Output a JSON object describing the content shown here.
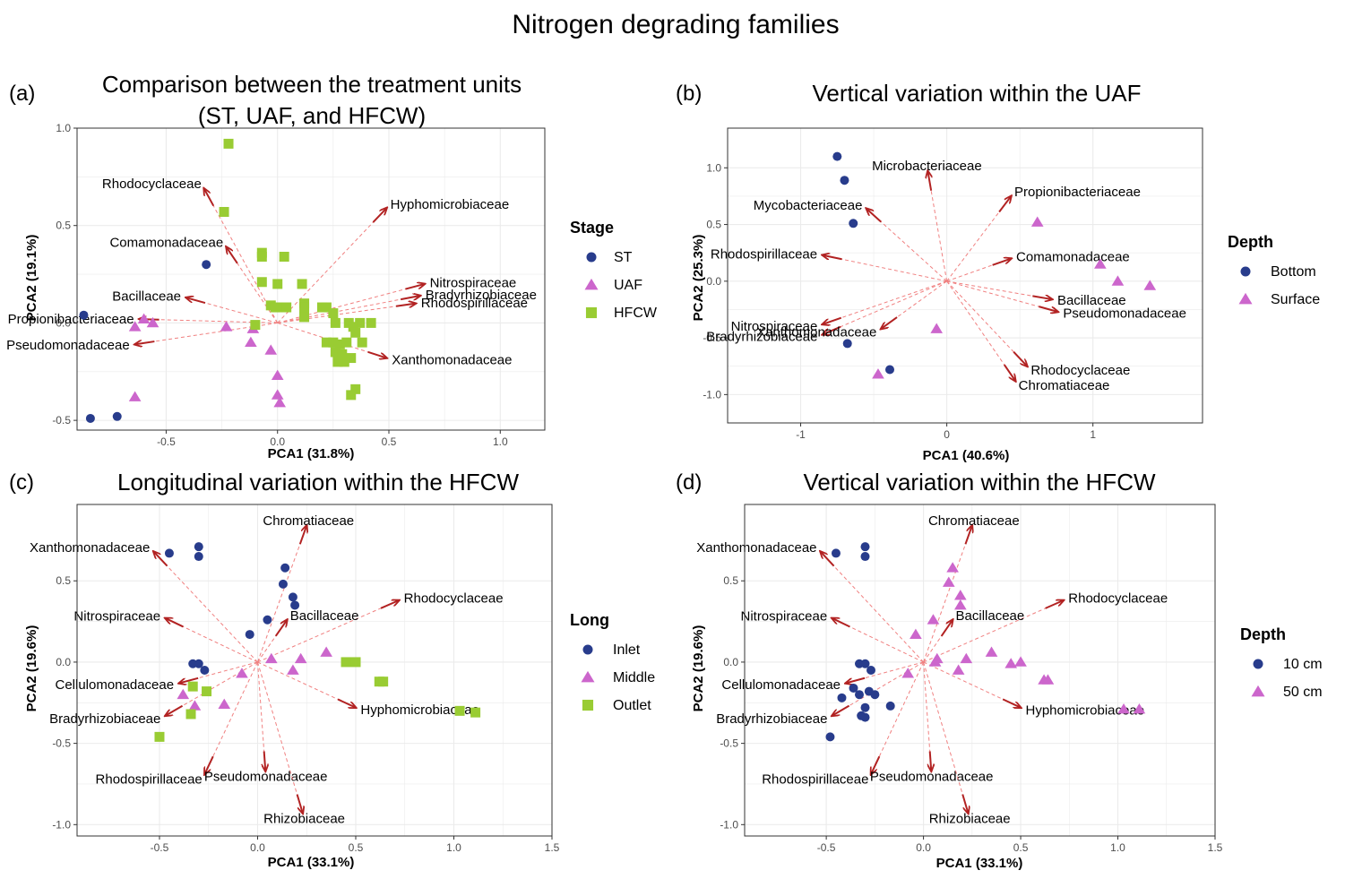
{
  "figure_title": "Nitrogen degrading families",
  "colors": {
    "arrow": "#b22222",
    "dash": "#f08080",
    "navy": "#283c8c",
    "magenta": "#cc66cc",
    "green": "#99cc33",
    "grid": "#ebebeb",
    "border": "#333333"
  },
  "chart_data": [
    {
      "id": "a",
      "type": "scatter",
      "panel_letter": "(a)",
      "title_lines": [
        "Comparison between the treatment units",
        "(ST, UAF, and HFCW)"
      ],
      "xlabel": "PCA1 (31.8%)",
      "ylabel": "PCA2 (19.1%)",
      "xlim": [
        -0.9,
        1.2
      ],
      "ylim": [
        -0.55,
        1.0
      ],
      "xticks": [
        -0.5,
        0.0,
        0.5,
        1.0
      ],
      "xtick_labels": [
        "-0.5",
        "0.0",
        "0.5",
        "1.0"
      ],
      "yticks": [
        -0.5,
        0.0,
        0.5,
        1.0
      ],
      "ytick_labels": [
        "-0.5",
        "0.0",
        "0.5",
        "1.0"
      ],
      "legend": {
        "title": "Stage",
        "entries": [
          {
            "label": "ST",
            "shape": "circle",
            "color": "#283c8c"
          },
          {
            "label": "UAF",
            "shape": "triangle",
            "color": "#cc66cc"
          },
          {
            "label": "HFCW",
            "shape": "square",
            "color": "#99cc33"
          }
        ]
      },
      "vectors": [
        {
          "name": "Rhodocyclaceae",
          "x": -0.33,
          "y": 0.69
        },
        {
          "name": "Hyphomicrobiaceae",
          "x": 0.49,
          "y": 0.59
        },
        {
          "name": "Comamonadaceae",
          "x": -0.23,
          "y": 0.39
        },
        {
          "name": "Bacillaceae",
          "x": -0.41,
          "y": 0.13
        },
        {
          "name": "Propionibacteriaceae",
          "x": -0.62,
          "y": 0.02
        },
        {
          "name": "Pseudomonadaceae",
          "x": -0.64,
          "y": -0.11
        },
        {
          "name": "Nitrospiraceae",
          "x": 0.66,
          "y": 0.2
        },
        {
          "name": "Bradyrhizobiaceae",
          "x": 0.64,
          "y": 0.14
        },
        {
          "name": "Rhodospirillaceae",
          "x": 0.62,
          "y": 0.1
        },
        {
          "name": "Xanthomonadaceae",
          "x": 0.49,
          "y": -0.18
        }
      ],
      "series": [
        {
          "name": "ST",
          "shape": "circle",
          "color": "#283c8c",
          "points": [
            [
              -0.87,
              0.04
            ],
            [
              -0.32,
              0.3
            ],
            [
              -0.84,
              -0.49
            ],
            [
              -0.72,
              -0.48
            ]
          ]
        },
        {
          "name": "UAF",
          "shape": "triangle",
          "color": "#cc66cc",
          "points": [
            [
              -0.64,
              -0.02
            ],
            [
              -0.6,
              0.02
            ],
            [
              -0.56,
              0.0
            ],
            [
              -0.23,
              -0.02
            ],
            [
              -0.11,
              -0.03
            ],
            [
              -0.12,
              -0.1
            ],
            [
              -0.03,
              -0.14
            ],
            [
              0.0,
              -0.27
            ],
            [
              0.0,
              -0.37
            ],
            [
              0.01,
              -0.41
            ],
            [
              -0.64,
              -0.38
            ]
          ]
        },
        {
          "name": "HFCW",
          "shape": "square",
          "color": "#99cc33",
          "points": [
            [
              -0.22,
              0.92
            ],
            [
              -0.24,
              0.57
            ],
            [
              -0.07,
              0.36
            ],
            [
              -0.07,
              0.34
            ],
            [
              0.03,
              0.34
            ],
            [
              -0.07,
              0.21
            ],
            [
              0.0,
              0.2
            ],
            [
              0.11,
              0.2
            ],
            [
              -0.03,
              0.09
            ],
            [
              0.0,
              0.08
            ],
            [
              0.04,
              0.08
            ],
            [
              0.12,
              0.1
            ],
            [
              0.12,
              0.08
            ],
            [
              0.2,
              0.08
            ],
            [
              0.22,
              0.08
            ],
            [
              -0.01,
              0.08
            ],
            [
              0.12,
              0.03
            ],
            [
              0.25,
              0.05
            ],
            [
              0.26,
              0.0
            ],
            [
              0.32,
              0.0
            ],
            [
              0.37,
              0.0
            ],
            [
              0.42,
              0.0
            ],
            [
              0.34,
              -0.02
            ],
            [
              0.35,
              -0.05
            ],
            [
              0.22,
              -0.1
            ],
            [
              0.25,
              -0.1
            ],
            [
              0.28,
              -0.11
            ],
            [
              0.31,
              -0.1
            ],
            [
              0.38,
              -0.1
            ],
            [
              0.26,
              -0.15
            ],
            [
              0.29,
              -0.16
            ],
            [
              0.33,
              -0.18
            ],
            [
              0.3,
              -0.2
            ],
            [
              0.27,
              -0.2
            ],
            [
              0.35,
              -0.34
            ],
            [
              0.33,
              -0.37
            ],
            [
              -0.1,
              -0.01
            ]
          ]
        }
      ]
    },
    {
      "id": "b",
      "type": "scatter",
      "panel_letter": "(b)",
      "title_lines": [
        "Vertical variation within the UAF"
      ],
      "xlabel": "PCA1 (40.6%)",
      "ylabel": "PCA2 (25.3%)",
      "xlim": [
        -1.5,
        1.75
      ],
      "ylim": [
        -1.25,
        1.35
      ],
      "xticks": [
        -1,
        0,
        1
      ],
      "xtick_labels": [
        "-1",
        "0",
        "1"
      ],
      "yticks": [
        -1.0,
        -0.5,
        0.0,
        0.5,
        1.0
      ],
      "ytick_labels": [
        "-1.0",
        "-0.5",
        "0.0",
        "0.5",
        "1.0"
      ],
      "legend": {
        "title": "Depth",
        "entries": [
          {
            "label": "Bottom",
            "shape": "circle",
            "color": "#283c8c"
          },
          {
            "label": "Surface",
            "shape": "triangle",
            "color": "#cc66cc"
          }
        ]
      },
      "vectors": [
        {
          "name": "Microbacteriaceae",
          "x": -0.13,
          "y": 0.97
        },
        {
          "name": "Propionibacteriaceae",
          "x": 0.44,
          "y": 0.75
        },
        {
          "name": "Mycobacteriaceae",
          "x": -0.55,
          "y": 0.64
        },
        {
          "name": "Rhodospirillaceae",
          "x": -0.85,
          "y": 0.23
        },
        {
          "name": "Comamonadaceae",
          "x": 0.44,
          "y": 0.2
        },
        {
          "name": "Bacillaceae",
          "x": 0.72,
          "y": -0.16
        },
        {
          "name": "Pseudomonadaceae",
          "x": 0.76,
          "y": -0.27
        },
        {
          "name": "Nitrospiraceae",
          "x": -0.85,
          "y": -0.38
        },
        {
          "name": "Bradyrhizobiaceae",
          "x": -0.85,
          "y": -0.47
        },
        {
          "name": "Xanthomonadaceae",
          "x": -0.45,
          "y": -0.42
        },
        {
          "name": "Rhodocyclaceae",
          "x": 0.55,
          "y": -0.75
        },
        {
          "name": "Chromatiaceae",
          "x": 0.47,
          "y": -0.88
        }
      ],
      "series": [
        {
          "name": "Bottom",
          "shape": "circle",
          "color": "#283c8c",
          "points": [
            [
              -0.75,
              1.1
            ],
            [
              -0.7,
              0.89
            ],
            [
              -0.64,
              0.51
            ],
            [
              -0.68,
              -0.55
            ],
            [
              -0.39,
              -0.78
            ]
          ]
        },
        {
          "name": "Surface",
          "shape": "triangle",
          "color": "#cc66cc",
          "points": [
            [
              0.62,
              0.52
            ],
            [
              1.05,
              0.15
            ],
            [
              1.17,
              0.0
            ],
            [
              1.39,
              -0.04
            ],
            [
              -0.07,
              -0.42
            ],
            [
              -0.47,
              -0.82
            ]
          ]
        }
      ]
    },
    {
      "id": "c",
      "type": "scatter",
      "panel_letter": "(c)",
      "title_lines": [
        "Longitudinal variation within the HFCW"
      ],
      "xlabel": "PCA1 (33.1%)",
      "ylabel": "PCA2 (19.6%)",
      "xlim": [
        -0.92,
        1.5
      ],
      "ylim": [
        -1.07,
        0.97
      ],
      "xticks": [
        -0.5,
        0.0,
        0.5,
        1.0,
        1.5
      ],
      "xtick_labels": [
        "-0.5",
        "0.0",
        "0.5",
        "1.0",
        "1.5"
      ],
      "yticks": [
        -1.0,
        -0.5,
        0.0,
        0.5
      ],
      "ytick_labels": [
        "-1.0",
        "-0.5",
        "0.0",
        "0.5"
      ],
      "legend": {
        "title": "Long",
        "entries": [
          {
            "label": "Inlet",
            "shape": "circle",
            "color": "#283c8c"
          },
          {
            "label": "Middle",
            "shape": "triangle",
            "color": "#cc66cc"
          },
          {
            "label": "Outlet",
            "shape": "square",
            "color": "#99cc33"
          }
        ]
      },
      "vectors": [
        {
          "name": "Chromatiaceae",
          "x": 0.25,
          "y": 0.84
        },
        {
          "name": "Xanthomonadaceae",
          "x": -0.53,
          "y": 0.68
        },
        {
          "name": "Rhodocyclaceae",
          "x": 0.72,
          "y": 0.38
        },
        {
          "name": "Nitrospiraceae",
          "x": -0.47,
          "y": 0.27
        },
        {
          "name": "Bacillaceae",
          "x": 0.15,
          "y": 0.26
        },
        {
          "name": "Cellulomonadaceae",
          "x": -0.4,
          "y": -0.13
        },
        {
          "name": "Hyphomicrobiaceae",
          "x": 0.5,
          "y": -0.28
        },
        {
          "name": "Bradyrhizobiaceae",
          "x": -0.47,
          "y": -0.33
        },
        {
          "name": "Rhodospirillaceae",
          "x": -0.27,
          "y": -0.69
        },
        {
          "name": "Pseudomonadaceae",
          "x": 0.04,
          "y": -0.67
        },
        {
          "name": "Rhizobiaceae",
          "x": 0.23,
          "y": -0.93
        }
      ],
      "series": [
        {
          "name": "Inlet",
          "shape": "circle",
          "color": "#283c8c",
          "points": [
            [
              -0.45,
              0.67
            ],
            [
              -0.3,
              0.71
            ],
            [
              -0.3,
              0.65
            ],
            [
              0.14,
              0.58
            ],
            [
              0.13,
              0.48
            ],
            [
              0.18,
              0.4
            ],
            [
              0.19,
              0.35
            ],
            [
              0.05,
              0.26
            ],
            [
              -0.04,
              0.17
            ],
            [
              -0.33,
              -0.01
            ],
            [
              -0.3,
              -0.01
            ],
            [
              -0.27,
              -0.05
            ]
          ]
        },
        {
          "name": "Middle",
          "shape": "triangle",
          "color": "#cc66cc",
          "points": [
            [
              -0.08,
              -0.07
            ],
            [
              0.07,
              0.02
            ],
            [
              0.22,
              0.02
            ],
            [
              0.35,
              0.06
            ],
            [
              0.18,
              -0.05
            ],
            [
              -0.38,
              -0.2
            ],
            [
              -0.32,
              -0.27
            ],
            [
              -0.17,
              -0.26
            ]
          ]
        },
        {
          "name": "Outlet",
          "shape": "square",
          "color": "#99cc33",
          "points": [
            [
              -0.33,
              -0.15
            ],
            [
              -0.26,
              -0.18
            ],
            [
              -0.34,
              -0.32
            ],
            [
              -0.5,
              -0.46
            ],
            [
              0.45,
              0.0
            ],
            [
              0.5,
              0.0
            ],
            [
              0.62,
              -0.12
            ],
            [
              0.64,
              -0.12
            ],
            [
              1.03,
              -0.3
            ],
            [
              1.11,
              -0.31
            ]
          ]
        }
      ]
    },
    {
      "id": "d",
      "type": "scatter",
      "panel_letter": "(d)",
      "title_lines": [
        "Vertical variation within the HFCW"
      ],
      "xlabel": "PCA1 (33.1%)",
      "ylabel": "PCA2 (19.6%)",
      "xlim": [
        -0.92,
        1.5
      ],
      "ylim": [
        -1.07,
        0.97
      ],
      "xticks": [
        -0.5,
        0.0,
        0.5,
        1.0,
        1.5
      ],
      "xtick_labels": [
        "-0.5",
        "0.0",
        "0.5",
        "1.0",
        "1.5"
      ],
      "yticks": [
        -1.0,
        -0.5,
        0.0,
        0.5
      ],
      "ytick_labels": [
        "-1.0",
        "-0.5",
        "0.0",
        "0.5"
      ],
      "legend": {
        "title": "Depth",
        "entries": [
          {
            "label": "10 cm",
            "shape": "circle",
            "color": "#283c8c"
          },
          {
            "label": "50 cm",
            "shape": "triangle",
            "color": "#cc66cc"
          }
        ]
      },
      "vectors": [
        {
          "name": "Chromatiaceae",
          "x": 0.25,
          "y": 0.84
        },
        {
          "name": "Xanthomonadaceae",
          "x": -0.53,
          "y": 0.68
        },
        {
          "name": "Rhodocyclaceae",
          "x": 0.72,
          "y": 0.38
        },
        {
          "name": "Nitrospiraceae",
          "x": -0.47,
          "y": 0.27
        },
        {
          "name": "Bacillaceae",
          "x": 0.15,
          "y": 0.26
        },
        {
          "name": "Cellulomonadaceae",
          "x": -0.4,
          "y": -0.13
        },
        {
          "name": "Hyphomicrobiaceae",
          "x": 0.5,
          "y": -0.28
        },
        {
          "name": "Bradyrhizobiaceae",
          "x": -0.47,
          "y": -0.33
        },
        {
          "name": "Rhodospirillaceae",
          "x": -0.27,
          "y": -0.69
        },
        {
          "name": "Pseudomonadaceae",
          "x": 0.04,
          "y": -0.67
        },
        {
          "name": "Rhizobiaceae",
          "x": 0.23,
          "y": -0.93
        }
      ],
      "series": [
        {
          "name": "10 cm",
          "shape": "circle",
          "color": "#283c8c",
          "points": [
            [
              -0.45,
              0.67
            ],
            [
              -0.3,
              0.71
            ],
            [
              -0.3,
              0.65
            ],
            [
              -0.33,
              -0.01
            ],
            [
              -0.3,
              -0.01
            ],
            [
              -0.27,
              -0.05
            ],
            [
              -0.36,
              -0.16
            ],
            [
              -0.33,
              -0.2
            ],
            [
              -0.28,
              -0.18
            ],
            [
              -0.25,
              -0.2
            ],
            [
              -0.42,
              -0.22
            ],
            [
              -0.3,
              -0.28
            ],
            [
              -0.17,
              -0.27
            ],
            [
              -0.32,
              -0.33
            ],
            [
              -0.3,
              -0.34
            ],
            [
              -0.48,
              -0.46
            ]
          ]
        },
        {
          "name": "50 cm",
          "shape": "triangle",
          "color": "#cc66cc",
          "points": [
            [
              0.15,
              0.58
            ],
            [
              0.13,
              0.49
            ],
            [
              0.19,
              0.41
            ],
            [
              0.19,
              0.35
            ],
            [
              0.05,
              0.26
            ],
            [
              -0.04,
              0.17
            ],
            [
              -0.08,
              -0.07
            ],
            [
              0.07,
              0.02
            ],
            [
              0.22,
              0.02
            ],
            [
              0.35,
              0.06
            ],
            [
              0.18,
              -0.05
            ],
            [
              0.45,
              -0.01
            ],
            [
              0.5,
              0.0
            ],
            [
              0.62,
              -0.11
            ],
            [
              0.64,
              -0.11
            ],
            [
              1.03,
              -0.29
            ],
            [
              1.11,
              -0.29
            ],
            [
              0.06,
              0.0
            ]
          ]
        }
      ]
    }
  ]
}
